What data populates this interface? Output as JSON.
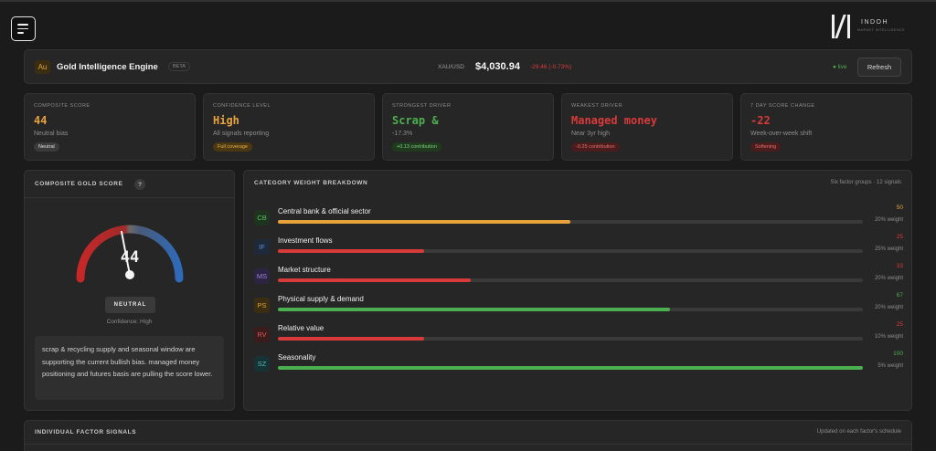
{
  "brand": {
    "name": "INDOH",
    "tagline": "MARKET INTELLIGENCE"
  },
  "header": {
    "badge": "Au",
    "title": "Gold Intelligence Engine",
    "beta": "BETA",
    "pair": "XAU/USD",
    "price": "$4,030.94",
    "change": "-29.46 (-0.73%)",
    "live": "● live",
    "refresh_label": "Refresh"
  },
  "cards": [
    {
      "label": "COMPOSITE SCORE",
      "value": "44",
      "sub": "Neutral bias",
      "tag": "Neutral",
      "value_color": "#e8a23a",
      "tag_bg": "#3a3a3a",
      "tag_color": "#e0e0e0"
    },
    {
      "label": "CONFIDENCE LEVEL",
      "value": "High",
      "sub": "All signals reporting",
      "tag": "Full coverage",
      "value_color": "#e8a23a",
      "tag_bg": "#4a3812",
      "tag_color": "#e8b04a"
    },
    {
      "label": "STRONGEST DRIVER",
      "value": "Scrap &",
      "sub": "-17.3%",
      "tag": "+0.13 contribution",
      "value_color": "#4caf50",
      "tag_bg": "#1f3a1f",
      "tag_color": "#7ed37e"
    },
    {
      "label": "WEAKEST DRIVER",
      "value": "Managed money",
      "sub": "Near 3yr high",
      "tag": "-0.25 contribution",
      "value_color": "#d83a3a",
      "tag_bg": "#4a1c1c",
      "tag_color": "#e87070"
    },
    {
      "label": "7 DAY SCORE CHANGE",
      "value": "-22",
      "sub": "Week-over-week shift",
      "tag": "Softening",
      "value_color": "#d83a3a",
      "tag_bg": "#4a1c1c",
      "tag_color": "#e87070"
    }
  ],
  "gauge": {
    "title": "COMPOSITE GOLD SCORE",
    "help": "?",
    "value": "44",
    "score": 44,
    "label": "NEUTRAL",
    "confidence": "Confidence: High",
    "summary": "scrap & recycling supply and seasonal window are supporting the current bullish bias. managed money positioning and futures basis are pulling the score lower."
  },
  "weights": {
    "title": "CATEGORY WEIGHT BREAKDOWN",
    "meta": "Six factor groups · 12 signals",
    "rows": [
      {
        "code": "CB",
        "label": "Central bank & official sector",
        "score": "50",
        "weight": "20% weight",
        "fill": 0.5,
        "color": "#e8a23a",
        "icon_bg": "#1e3320",
        "icon_color": "#5cbf5c"
      },
      {
        "code": "IF",
        "label": "Investment flows",
        "score": "25",
        "weight": "25% weight",
        "fill": 0.25,
        "color": "#d83a3a",
        "icon_bg": "#1e2a3a",
        "icon_color": "#5a8fd8"
      },
      {
        "code": "MS",
        "label": "Market structure",
        "score": "33",
        "weight": "20% weight",
        "fill": 0.33,
        "color": "#d83a3a",
        "icon_bg": "#2c2440",
        "icon_color": "#9a84e0"
      },
      {
        "code": "PS",
        "label": "Physical supply & demand",
        "score": "67",
        "weight": "20% weight",
        "fill": 0.67,
        "color": "#4caf50",
        "icon_bg": "#3a2d12",
        "icon_color": "#e0a53a"
      },
      {
        "code": "RV",
        "label": "Relative value",
        "score": "25",
        "weight": "10% weight",
        "fill": 0.25,
        "color": "#d83a3a",
        "icon_bg": "#3a1c1c",
        "icon_color": "#d85a5a"
      },
      {
        "code": "SZ",
        "label": "Seasonality",
        "score": "100",
        "weight": "5% weight",
        "fill": 1.0,
        "color": "#4caf50",
        "icon_bg": "#163234",
        "icon_color": "#4fbcb8"
      }
    ]
  },
  "signals": {
    "title": "INDIVIDUAL FACTOR SIGNALS",
    "meta": "Updated on each factor's schedule"
  }
}
